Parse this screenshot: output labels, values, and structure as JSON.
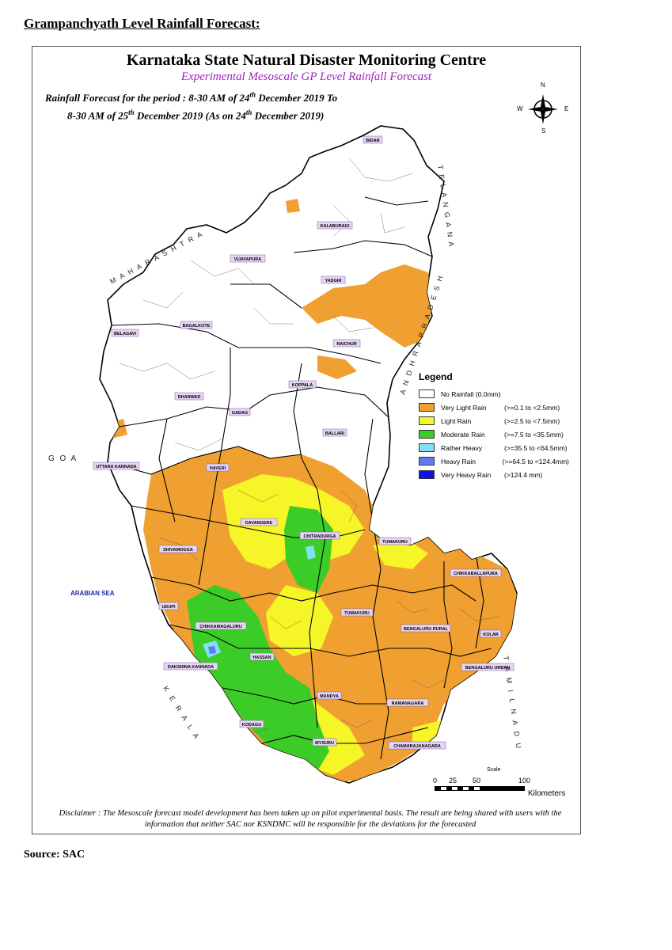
{
  "page": {
    "heading": "Grampanchyath Level Rainfall Forecast:",
    "source": "Source: SAC"
  },
  "map": {
    "title": "Karnataka State Natural Disaster Monitoring Centre",
    "subtitle": "Experimental Mesoscale GP Level Rainfall Forecast",
    "period": {
      "prefix1": "Rainfall Forecast for the period : 8-30 AM of 24",
      "sup1": "th",
      "suffix1": " December 2019 To",
      "prefix2": "8-30 AM of 25",
      "sup2": "th",
      "suffix2": " December 2019 (As on 24",
      "sup3": "th",
      "suffix3": " December 2019)"
    },
    "compass": {
      "n": "N",
      "s": "S",
      "e": "E",
      "w": "W"
    },
    "neighbours": {
      "maharashtra": "M A H A R A S H T R A",
      "telangana": "T E L A N G A N A",
      "andhra": "A N D H R A   P R A D E S H",
      "goa": "G O A",
      "arabian_sea": "ARABIAN SEA",
      "kerala": "K E R A L A",
      "tamil_nadu": "T A M I L   N A D U"
    },
    "districts": [
      "BIDAR",
      "KALABURAGI",
      "VIJAYAPURA",
      "YADGIR",
      "BAGALKOTE",
      "BELAGAVI",
      "RAICHUR",
      "KOPPALA",
      "DHARWAD",
      "GADAG",
      "BALLARI",
      "UTTARA KANNADA",
      "HAVERI",
      "DAVANGERE",
      "CHITRADURGA",
      "TUMAKURU",
      "SHIVAMOGGA",
      "CHIKKABALLAPURA",
      "UDUPI",
      "CHIKKAMAGALURU",
      "TUMAKURU",
      "BENGALURU RURAL",
      "KOLAR",
      "HASSAN",
      "DAKSHINA KANNADA",
      "BENGALURU URBAN",
      "MANDYA",
      "RAMANAGARA",
      "KODAGU",
      "MYSURU",
      "CHAMARAJANAGARA"
    ],
    "legend": {
      "title": "Legend",
      "items": [
        {
          "label": "No Rainfall (0.0mm)",
          "range": "",
          "color": "#ffffff"
        },
        {
          "label": "Very Light Rain",
          "range": "(>=0.1 to <2.5mm)",
          "color": "#f0a030"
        },
        {
          "label": " Light Rain",
          "range": "(>=2.5 to <7.5mm)",
          "color": "#f5f528"
        },
        {
          "label": "Moderate Rain",
          "range": "(>=7.5 to <35.5mm)",
          "color": "#3ccc28"
        },
        {
          "label": "Rather Heavy",
          "range": "(>=35.5 to <64.5mm)",
          "color": "#80e0f5"
        },
        {
          "label": "Heavy Rain",
          "range": "(>=64.5 to <124.4mm)",
          "color": "#6478f0"
        },
        {
          "label": "Very Heavy Rain",
          "range": "(>124.4 mm)",
          "color": "#1010f0"
        }
      ]
    },
    "scale": {
      "title": "Scale",
      "ticks": [
        "0",
        "25",
        "50",
        "100"
      ],
      "unit": "Kilometers"
    },
    "disclaimer": "Disclaimer : The Mesoscale forecast model development has been taken up on pilot experimental basis. The result are being shared with users with the information that neither SAC nor KSNDMC will be responsible  for the deviations for the forecasted",
    "colors": {
      "no_rain": "#ffffff",
      "very_light": "#f0a030",
      "light": "#f5f528",
      "moderate": "#3ccc28",
      "rather_heavy": "#80e0f5",
      "heavy": "#6478f0"
    }
  }
}
